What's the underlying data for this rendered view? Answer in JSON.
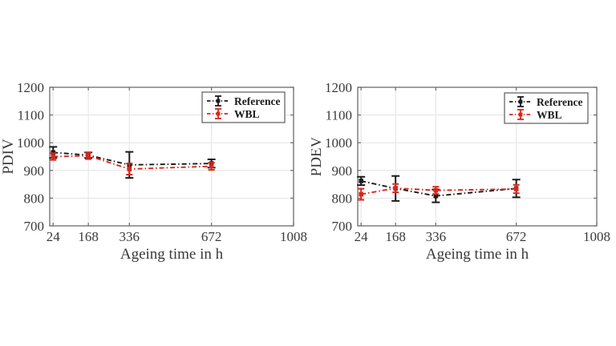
{
  "figure": {
    "description": "Two error-bar line plots of partial discharge voltages versus ageing time",
    "background": "#ffffff",
    "grid_color": "#e3e3e3",
    "box_color": "#6b6b6b",
    "text_color": "#3a3a3a"
  },
  "chart_data": [
    {
      "id": "pdiv",
      "type": "line",
      "title": "",
      "xlabel": "Ageing time in h",
      "ylabel": "PDIV",
      "x": [
        24,
        168,
        336,
        672
      ],
      "xticks": [
        "24",
        "168",
        "336",
        "672",
        "1008"
      ],
      "xtick_values": [
        24,
        168,
        336,
        672,
        1008
      ],
      "yticks": [
        "700",
        "800",
        "900",
        "1000",
        "1100",
        "1200"
      ],
      "ytick_values": [
        700,
        800,
        900,
        1000,
        1100,
        1200
      ],
      "xlim": [
        10,
        1008
      ],
      "ylim": [
        700,
        1200
      ],
      "grid": true,
      "legend_position": "top-right",
      "series": [
        {
          "name": "Reference",
          "color": "#1b1b1b",
          "linestyle": "dash-dot",
          "marker": "square",
          "values": [
            965,
            955,
            920,
            925
          ],
          "errors": [
            20,
            10,
            47,
            15
          ]
        },
        {
          "name": "WBL",
          "color": "#d8271c",
          "linestyle": "dash-dot",
          "marker": "square",
          "values": [
            950,
            953,
            905,
            915
          ],
          "errors": [
            12,
            12,
            20,
            13
          ]
        }
      ]
    },
    {
      "id": "pdev",
      "type": "line",
      "title": "",
      "xlabel": "Ageing time in h",
      "ylabel": "PDEV",
      "x": [
        24,
        168,
        336,
        672
      ],
      "xticks": [
        "24",
        "168",
        "336",
        "672",
        "1008"
      ],
      "xtick_values": [
        24,
        168,
        336,
        672,
        1008
      ],
      "yticks": [
        "700",
        "800",
        "900",
        "1000",
        "1100",
        "1200"
      ],
      "ytick_values": [
        700,
        800,
        900,
        1000,
        1100,
        1200
      ],
      "xlim": [
        10,
        1008
      ],
      "ylim": [
        700,
        1200
      ],
      "grid": true,
      "legend_position": "top-right",
      "series": [
        {
          "name": "Reference",
          "color": "#1b1b1b",
          "linestyle": "dash-dot",
          "marker": "square",
          "values": [
            862,
            835,
            808,
            835
          ],
          "errors": [
            15,
            45,
            23,
            32
          ]
        },
        {
          "name": "WBL",
          "color": "#d8271c",
          "linestyle": "dash-dot",
          "marker": "square",
          "values": [
            814,
            836,
            828,
            833
          ],
          "errors": [
            20,
            15,
            13,
            15
          ]
        }
      ]
    }
  ]
}
